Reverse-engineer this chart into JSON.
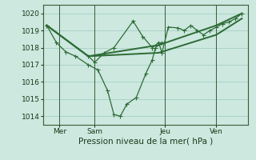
{
  "xlabel": "Pression niveau de la mer( hPa )",
  "bg_color": "#cce8df",
  "grid_color": "#a8cfc4",
  "line_color": "#2d6b35",
  "ylim": [
    1013.5,
    1020.5
  ],
  "xlim": [
    0,
    32
  ],
  "yticks": [
    1014,
    1015,
    1016,
    1017,
    1018,
    1019,
    1020
  ],
  "day_labels": [
    "Mer",
    "Sam",
    "Jeu",
    "Ven"
  ],
  "day_positions": [
    2.5,
    8,
    19,
    27
  ],
  "vline_positions": [
    2.5,
    8,
    19,
    27
  ],
  "series1_x": [
    0.5,
    2,
    3.5,
    5,
    7,
    8.5,
    10,
    11,
    12,
    13,
    14.5,
    16,
    17,
    17.5,
    18.5
  ],
  "series1_y": [
    1019.3,
    1018.3,
    1017.75,
    1017.5,
    1017.0,
    1016.7,
    1015.5,
    1014.1,
    1014.0,
    1014.7,
    1015.1,
    1016.5,
    1017.3,
    1018.0,
    1018.3
  ],
  "series2_x": [
    0.5,
    7,
    8,
    9.5,
    11,
    14,
    15.5,
    17,
    18,
    18.5,
    19.5,
    21,
    22,
    23,
    24,
    25,
    26,
    27,
    28,
    29,
    30,
    31
  ],
  "series2_y": [
    1019.3,
    1017.5,
    1017.15,
    1017.7,
    1018.0,
    1019.55,
    1018.65,
    1018.0,
    1018.3,
    1017.7,
    1019.2,
    1019.15,
    1019.0,
    1019.3,
    1019.0,
    1018.75,
    1019.0,
    1019.2,
    1019.4,
    1019.5,
    1019.7,
    1020.0
  ],
  "series3_x": [
    0.5,
    7,
    18,
    27,
    31
  ],
  "series3_y": [
    1019.3,
    1017.5,
    1018.15,
    1019.3,
    1020.0
  ],
  "series4_x": [
    0.5,
    7,
    18,
    27,
    31
  ],
  "series4_y": [
    1019.3,
    1017.5,
    1017.7,
    1018.75,
    1019.7
  ]
}
